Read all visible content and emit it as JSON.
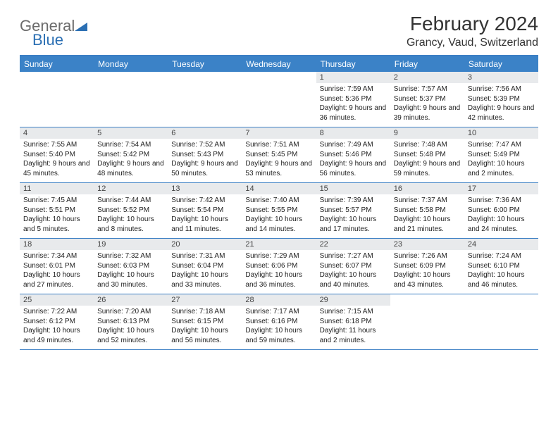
{
  "logo": {
    "text1": "General",
    "text2": "Blue"
  },
  "title": "February 2024",
  "location": "Grancy, Vaud, Switzerland",
  "colors": {
    "header_bg": "#3b82c7",
    "border": "#3b7fc4",
    "daynum_bg": "#e8eaec",
    "text": "#222222",
    "logo_gray": "#6b6b6b",
    "logo_blue": "#2b6fb3"
  },
  "weekdays": [
    "Sunday",
    "Monday",
    "Tuesday",
    "Wednesday",
    "Thursday",
    "Friday",
    "Saturday"
  ],
  "weeks": [
    [
      null,
      null,
      null,
      null,
      {
        "n": "1",
        "sr": "7:59 AM",
        "ss": "5:36 PM",
        "dl": "9 hours and 36 minutes."
      },
      {
        "n": "2",
        "sr": "7:57 AM",
        "ss": "5:37 PM",
        "dl": "9 hours and 39 minutes."
      },
      {
        "n": "3",
        "sr": "7:56 AM",
        "ss": "5:39 PM",
        "dl": "9 hours and 42 minutes."
      }
    ],
    [
      {
        "n": "4",
        "sr": "7:55 AM",
        "ss": "5:40 PM",
        "dl": "9 hours and 45 minutes."
      },
      {
        "n": "5",
        "sr": "7:54 AM",
        "ss": "5:42 PM",
        "dl": "9 hours and 48 minutes."
      },
      {
        "n": "6",
        "sr": "7:52 AM",
        "ss": "5:43 PM",
        "dl": "9 hours and 50 minutes."
      },
      {
        "n": "7",
        "sr": "7:51 AM",
        "ss": "5:45 PM",
        "dl": "9 hours and 53 minutes."
      },
      {
        "n": "8",
        "sr": "7:49 AM",
        "ss": "5:46 PM",
        "dl": "9 hours and 56 minutes."
      },
      {
        "n": "9",
        "sr": "7:48 AM",
        "ss": "5:48 PM",
        "dl": "9 hours and 59 minutes."
      },
      {
        "n": "10",
        "sr": "7:47 AM",
        "ss": "5:49 PM",
        "dl": "10 hours and 2 minutes."
      }
    ],
    [
      {
        "n": "11",
        "sr": "7:45 AM",
        "ss": "5:51 PM",
        "dl": "10 hours and 5 minutes."
      },
      {
        "n": "12",
        "sr": "7:44 AM",
        "ss": "5:52 PM",
        "dl": "10 hours and 8 minutes."
      },
      {
        "n": "13",
        "sr": "7:42 AM",
        "ss": "5:54 PM",
        "dl": "10 hours and 11 minutes."
      },
      {
        "n": "14",
        "sr": "7:40 AM",
        "ss": "5:55 PM",
        "dl": "10 hours and 14 minutes."
      },
      {
        "n": "15",
        "sr": "7:39 AM",
        "ss": "5:57 PM",
        "dl": "10 hours and 17 minutes."
      },
      {
        "n": "16",
        "sr": "7:37 AM",
        "ss": "5:58 PM",
        "dl": "10 hours and 21 minutes."
      },
      {
        "n": "17",
        "sr": "7:36 AM",
        "ss": "6:00 PM",
        "dl": "10 hours and 24 minutes."
      }
    ],
    [
      {
        "n": "18",
        "sr": "7:34 AM",
        "ss": "6:01 PM",
        "dl": "10 hours and 27 minutes."
      },
      {
        "n": "19",
        "sr": "7:32 AM",
        "ss": "6:03 PM",
        "dl": "10 hours and 30 minutes."
      },
      {
        "n": "20",
        "sr": "7:31 AM",
        "ss": "6:04 PM",
        "dl": "10 hours and 33 minutes."
      },
      {
        "n": "21",
        "sr": "7:29 AM",
        "ss": "6:06 PM",
        "dl": "10 hours and 36 minutes."
      },
      {
        "n": "22",
        "sr": "7:27 AM",
        "ss": "6:07 PM",
        "dl": "10 hours and 40 minutes."
      },
      {
        "n": "23",
        "sr": "7:26 AM",
        "ss": "6:09 PM",
        "dl": "10 hours and 43 minutes."
      },
      {
        "n": "24",
        "sr": "7:24 AM",
        "ss": "6:10 PM",
        "dl": "10 hours and 46 minutes."
      }
    ],
    [
      {
        "n": "25",
        "sr": "7:22 AM",
        "ss": "6:12 PM",
        "dl": "10 hours and 49 minutes."
      },
      {
        "n": "26",
        "sr": "7:20 AM",
        "ss": "6:13 PM",
        "dl": "10 hours and 52 minutes."
      },
      {
        "n": "27",
        "sr": "7:18 AM",
        "ss": "6:15 PM",
        "dl": "10 hours and 56 minutes."
      },
      {
        "n": "28",
        "sr": "7:17 AM",
        "ss": "6:16 PM",
        "dl": "10 hours and 59 minutes."
      },
      {
        "n": "29",
        "sr": "7:15 AM",
        "ss": "6:18 PM",
        "dl": "11 hours and 2 minutes."
      },
      null,
      null
    ]
  ],
  "labels": {
    "sunrise": "Sunrise: ",
    "sunset": "Sunset: ",
    "daylight": "Daylight: "
  }
}
